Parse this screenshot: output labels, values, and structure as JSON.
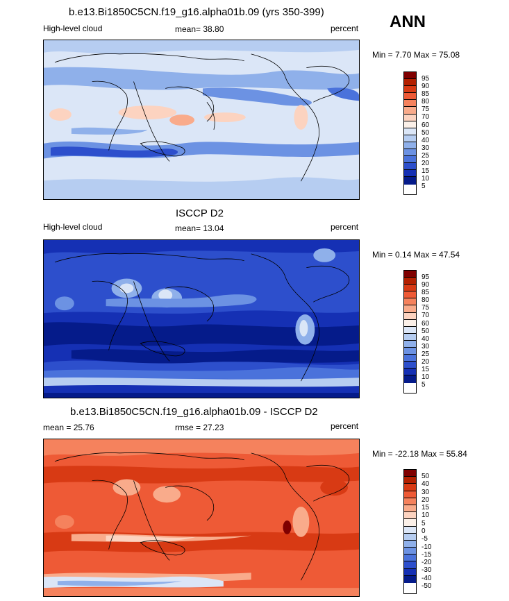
{
  "season": "ANN",
  "chart_data": [
    {
      "type": "heatmap",
      "title": "b.e13.Bi1850C5CN.f19_g16.alpha01b.09 (yrs 350-399)",
      "left_label": "High-level cloud",
      "center_label": "mean=  38.80",
      "right_label": "percent",
      "minmax": "Min =  7.70 Max =  75.08",
      "levels": [
        "95",
        "90",
        "85",
        "80",
        "75",
        "70",
        "60",
        "50",
        "40",
        "30",
        "25",
        "20",
        "15",
        "10",
        "5"
      ],
      "colors": [
        "#7f0000",
        "#b32000",
        "#d83a14",
        "#ee5a36",
        "#f5825d",
        "#f9ab8b",
        "#fcd3c0",
        "#fbf0e8",
        "#dbe6f7",
        "#b6cdf1",
        "#8fb0ea",
        "#6c92e3",
        "#4a72db",
        "#2d4fcc",
        "#1530b4",
        "#051b8a"
      ]
    },
    {
      "type": "heatmap",
      "title": "ISCCP D2",
      "left_label": "High-level cloud",
      "center_label": "mean=  13.04",
      "right_label": "percent",
      "minmax": "Min =  0.14 Max =  47.54",
      "levels": [
        "95",
        "90",
        "85",
        "80",
        "75",
        "70",
        "60",
        "50",
        "40",
        "30",
        "25",
        "20",
        "15",
        "10",
        "5"
      ],
      "colors": [
        "#7f0000",
        "#b32000",
        "#d83a14",
        "#ee5a36",
        "#f5825d",
        "#f9ab8b",
        "#fcd3c0",
        "#fbf0e8",
        "#dbe6f7",
        "#b6cdf1",
        "#8fb0ea",
        "#6c92e3",
        "#4a72db",
        "#2d4fcc",
        "#1530b4",
        "#051b8a"
      ]
    },
    {
      "type": "heatmap",
      "title": "b.e13.Bi1850C5CN.f19_g16.alpha01b.09 - ISCCP D2",
      "left_label": "mean =  25.76",
      "center_label": "rmse =  27.23",
      "right_label": "percent",
      "minmax": "Min = -22.18 Max =  55.84",
      "levels": [
        "50",
        "40",
        "30",
        "20",
        "15",
        "10",
        "5",
        "0",
        "-5",
        "-10",
        "-15",
        "-20",
        "-30",
        "-40",
        "-50"
      ],
      "colors": [
        "#7f0000",
        "#b32000",
        "#d83a14",
        "#ee5a36",
        "#f5825d",
        "#f9ab8b",
        "#fcd3c0",
        "#fbf0e8",
        "#dbe6f7",
        "#b6cdf1",
        "#8fb0ea",
        "#6c92e3",
        "#4a72db",
        "#2d4fcc",
        "#1530b4",
        "#051b8a"
      ]
    }
  ]
}
